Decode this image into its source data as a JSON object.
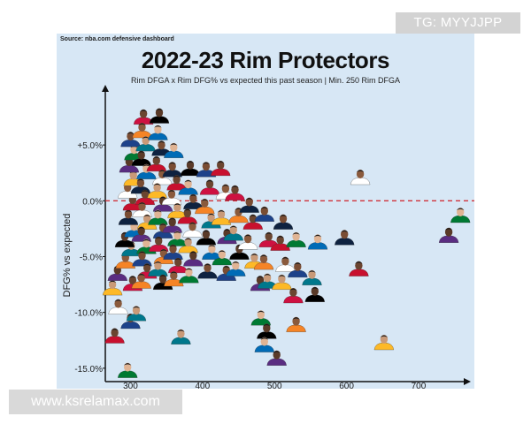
{
  "watermarks": {
    "top": "TG: MYYJJPP",
    "bottom": "www.ksrelamax.com"
  },
  "chart_data": {
    "type": "scatter",
    "source": "Source: nba.com defensive dashboard",
    "title": "2022-23 Rim Protectors",
    "subtitle": "Rim DFGA x Rim DFG% vs expected this past season | Min. 250 Rim DFGA",
    "xlabel": "",
    "ylabel": "DFG% vs expected",
    "xlim": [
      265,
      775
    ],
    "ylim": [
      -16.2,
      9.6
    ],
    "xticks": [
      "300",
      "400",
      "500",
      "600",
      "700"
    ],
    "yticks": [
      "+5.0%",
      "0.0%",
      "-5.0%",
      "-10.0%",
      "-15.0%"
    ],
    "reference_line": {
      "y": 0.0,
      "color": "#d0313a",
      "style": "dashed"
    },
    "marker": "player headshot",
    "points": [
      {
        "x": 278,
        "y": -12.2
      },
      {
        "x": 283,
        "y": -9.6
      },
      {
        "x": 275,
        "y": -7.9
      },
      {
        "x": 282,
        "y": -6.6
      },
      {
        "x": 296,
        "y": -15.3
      },
      {
        "x": 300,
        "y": -10.9
      },
      {
        "x": 303,
        "y": -7.5
      },
      {
        "x": 293,
        "y": -5.5
      },
      {
        "x": 301,
        "y": -4.4
      },
      {
        "x": 292,
        "y": -3.6
      },
      {
        "x": 305,
        "y": -2.7
      },
      {
        "x": 297,
        "y": -1.6
      },
      {
        "x": 303,
        "y": -0.3
      },
      {
        "x": 296,
        "y": 0.8
      },
      {
        "x": 304,
        "y": 1.9
      },
      {
        "x": 298,
        "y": 3.1
      },
      {
        "x": 305,
        "y": 4.2
      },
      {
        "x": 300,
        "y": 5.4
      },
      {
        "x": 318,
        "y": 7.4
      },
      {
        "x": 316,
        "y": 6.2
      },
      {
        "x": 321,
        "y": 5.0
      },
      {
        "x": 315,
        "y": 3.7
      },
      {
        "x": 322,
        "y": 2.5
      },
      {
        "x": 314,
        "y": 1.2
      },
      {
        "x": 320,
        "y": 0.2
      },
      {
        "x": 316,
        "y": -0.9
      },
      {
        "x": 323,
        "y": -2.0
      },
      {
        "x": 315,
        "y": -3.1
      },
      {
        "x": 322,
        "y": -4.2
      },
      {
        "x": 316,
        "y": -5.3
      },
      {
        "x": 323,
        "y": -6.4
      },
      {
        "x": 315,
        "y": -7.3
      },
      {
        "x": 308,
        "y": -10.2
      },
      {
        "x": 340,
        "y": 7.5
      },
      {
        "x": 338,
        "y": 6.0
      },
      {
        "x": 343,
        "y": 4.6
      },
      {
        "x": 336,
        "y": 3.2
      },
      {
        "x": 344,
        "y": 2.0
      },
      {
        "x": 337,
        "y": 0.8
      },
      {
        "x": 345,
        "y": -0.4
      },
      {
        "x": 338,
        "y": -1.6
      },
      {
        "x": 345,
        "y": -2.8
      },
      {
        "x": 339,
        "y": -4.0
      },
      {
        "x": 346,
        "y": -5.1
      },
      {
        "x": 338,
        "y": -6.2
      },
      {
        "x": 345,
        "y": -7.4
      },
      {
        "x": 360,
        "y": 4.4
      },
      {
        "x": 358,
        "y": 2.7
      },
      {
        "x": 364,
        "y": 1.5
      },
      {
        "x": 357,
        "y": 0.2
      },
      {
        "x": 365,
        "y": -1.0
      },
      {
        "x": 358,
        "y": -2.3
      },
      {
        "x": 365,
        "y": -3.5
      },
      {
        "x": 359,
        "y": -4.7
      },
      {
        "x": 366,
        "y": -5.9
      },
      {
        "x": 360,
        "y": -7.1
      },
      {
        "x": 370,
        "y": -12.3
      },
      {
        "x": 383,
        "y": 2.8
      },
      {
        "x": 380,
        "y": 1.1
      },
      {
        "x": 387,
        "y": -0.2
      },
      {
        "x": 379,
        "y": -1.5
      },
      {
        "x": 386,
        "y": -2.7
      },
      {
        "x": 380,
        "y": -4.1
      },
      {
        "x": 387,
        "y": -5.3
      },
      {
        "x": 381,
        "y": -6.8
      },
      {
        "x": 405,
        "y": 2.7
      },
      {
        "x": 410,
        "y": 1.1
      },
      {
        "x": 403,
        "y": -0.6
      },
      {
        "x": 412,
        "y": -1.9
      },
      {
        "x": 405,
        "y": -3.4
      },
      {
        "x": 413,
        "y": -4.7
      },
      {
        "x": 407,
        "y": -6.4
      },
      {
        "x": 425,
        "y": 2.8
      },
      {
        "x": 432,
        "y": 0.7
      },
      {
        "x": 426,
        "y": -1.6
      },
      {
        "x": 434,
        "y": -3.3
      },
      {
        "x": 427,
        "y": -5.2
      },
      {
        "x": 433,
        "y": -6.6
      },
      {
        "x": 445,
        "y": 0.6
      },
      {
        "x": 450,
        "y": -1.4
      },
      {
        "x": 443,
        "y": -3.0
      },
      {
        "x": 451,
        "y": -4.7
      },
      {
        "x": 446,
        "y": -6.2
      },
      {
        "x": 465,
        "y": -0.5
      },
      {
        "x": 470,
        "y": -2.0
      },
      {
        "x": 463,
        "y": -3.8
      },
      {
        "x": 472,
        "y": -5.5
      },
      {
        "x": 480,
        "y": -7.5
      },
      {
        "x": 481,
        "y": -10.6
      },
      {
        "x": 486,
        "y": -1.3
      },
      {
        "x": 492,
        "y": -3.6
      },
      {
        "x": 485,
        "y": -5.6
      },
      {
        "x": 490,
        "y": -7.3
      },
      {
        "x": 489,
        "y": -11.8
      },
      {
        "x": 486,
        "y": -13.0
      },
      {
        "x": 512,
        "y": -2.0
      },
      {
        "x": 508,
        "y": -3.9
      },
      {
        "x": 515,
        "y": -5.8
      },
      {
        "x": 510,
        "y": -7.4
      },
      {
        "x": 503,
        "y": -14.2
      },
      {
        "x": 530,
        "y": -3.6
      },
      {
        "x": 532,
        "y": -6.3
      },
      {
        "x": 526,
        "y": -8.6
      },
      {
        "x": 530,
        "y": -11.2
      },
      {
        "x": 552,
        "y": -7.0
      },
      {
        "x": 556,
        "y": -8.5
      },
      {
        "x": 560,
        "y": -3.8
      },
      {
        "x": 597,
        "y": -3.4
      },
      {
        "x": 617,
        "y": -6.2
      },
      {
        "x": 619,
        "y": 2.0
      },
      {
        "x": 652,
        "y": -12.8
      },
      {
        "x": 742,
        "y": -3.2
      },
      {
        "x": 758,
        "y": -1.4
      }
    ]
  }
}
